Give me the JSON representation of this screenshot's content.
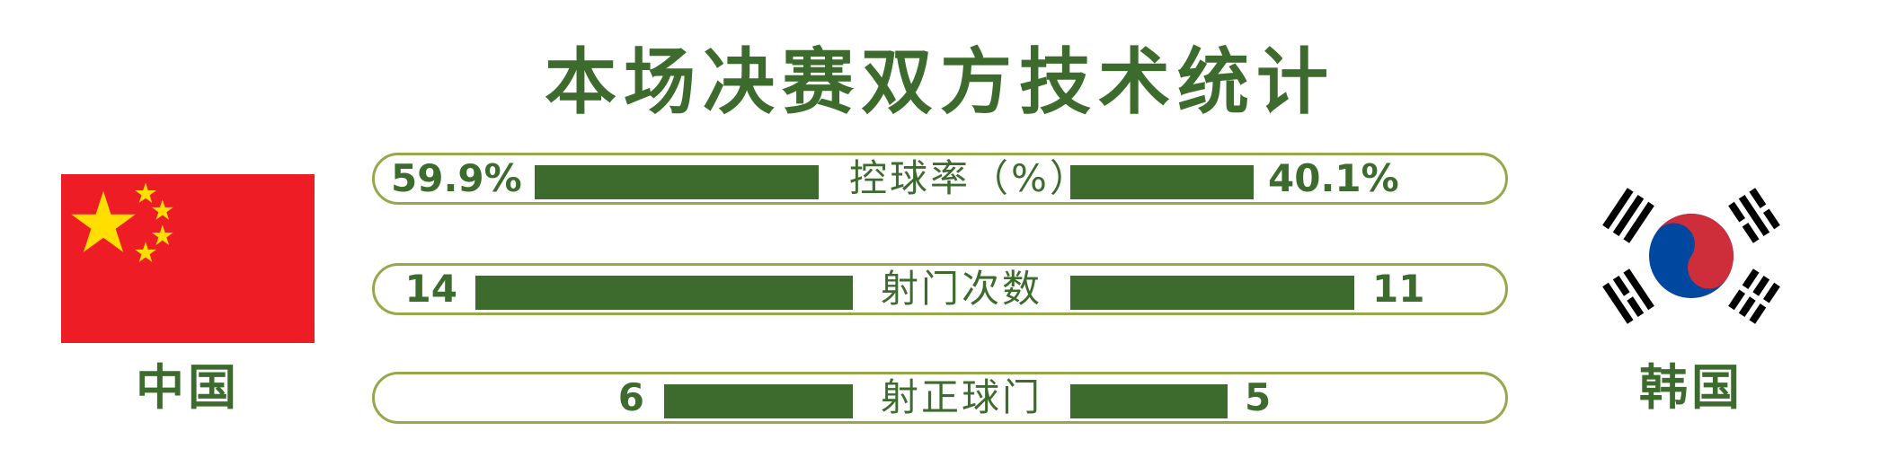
{
  "title": "本场决赛双方技术统计",
  "teams": {
    "home": {
      "name": "中国",
      "flag_icon": "china-flag-icon"
    },
    "away": {
      "name": "韩国",
      "flag_icon": "south-korea-flag-icon"
    }
  },
  "colors": {
    "primary": "#3d6b2e",
    "row_border": "#95a84a",
    "cn_red": "#ee1c25",
    "cn_yellow": "#ffde00",
    "kr_red": "#cd2e3a",
    "kr_blue": "#0047a0"
  },
  "chart_data": {
    "type": "bar",
    "title": "本场决赛双方技术统计",
    "categories": [
      "控球率（%）",
      "射门次数",
      "射正球门"
    ],
    "series": [
      {
        "name": "中国",
        "values": [
          59.9,
          14,
          6
        ],
        "labels": [
          "59.9%",
          "14",
          "6"
        ]
      },
      {
        "name": "韩国",
        "values": [
          40.1,
          11,
          5
        ],
        "labels": [
          "40.1%",
          "11",
          "5"
        ]
      }
    ]
  }
}
